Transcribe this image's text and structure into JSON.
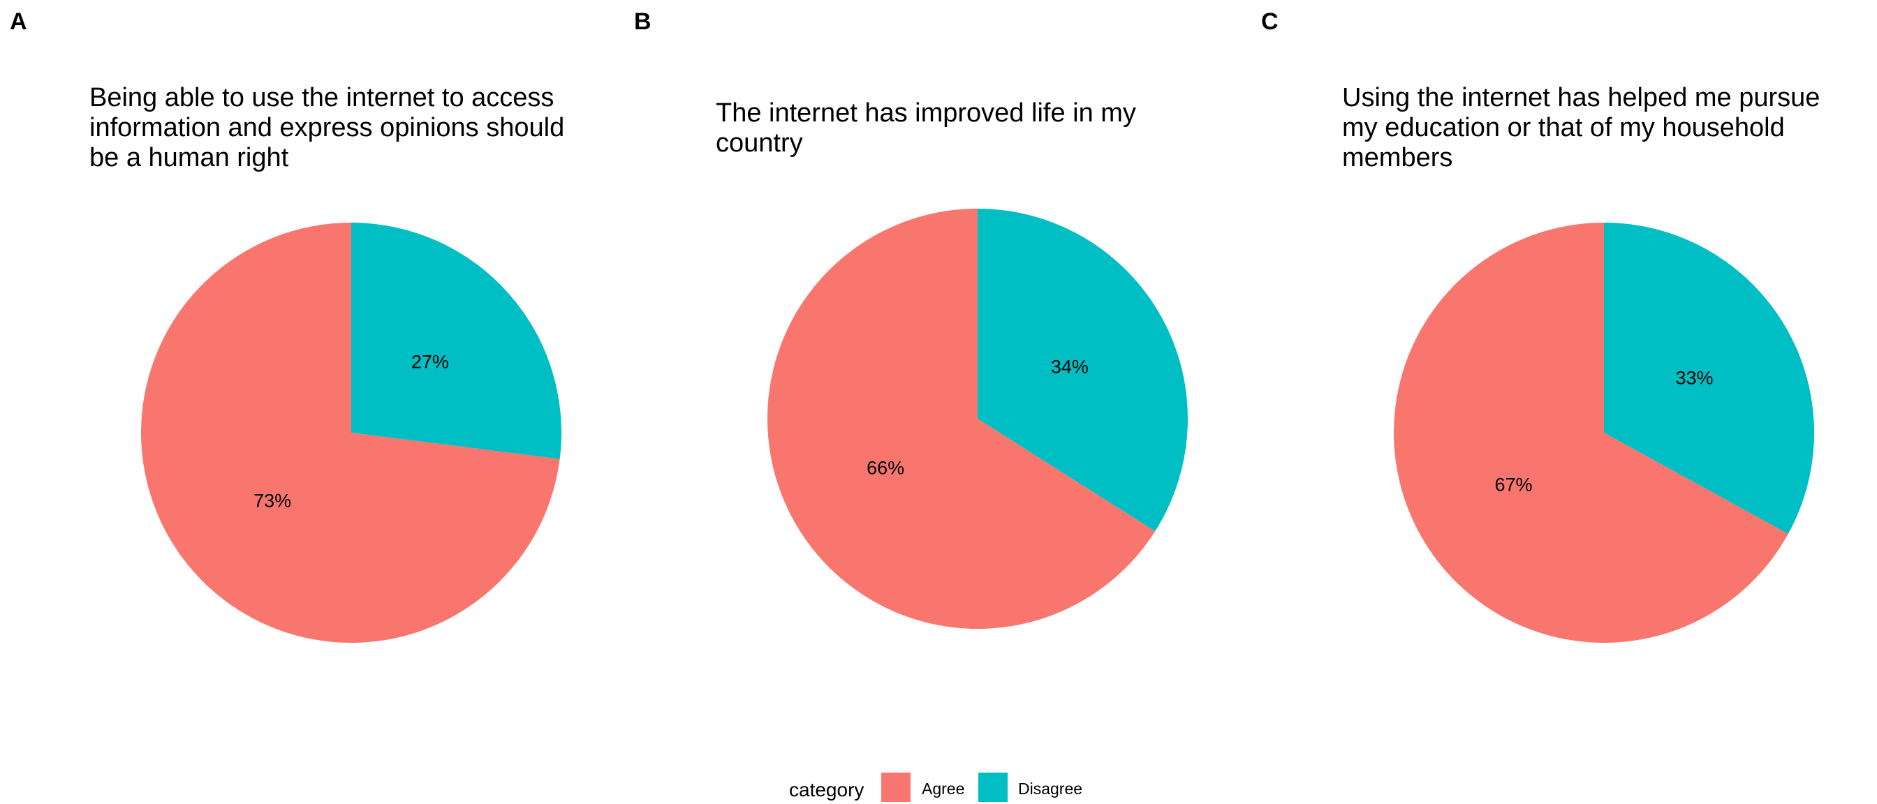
{
  "chart_data": [
    {
      "type": "pie",
      "panel": "A",
      "title": "Being able to use the internet to access information and express opinions should be a human right",
      "title_lines": [
        "Being able to use the internet to access",
        "information and express opinions should",
        "be a human right"
      ],
      "slices": [
        {
          "category": "Disagree",
          "value": 27,
          "label": "27%"
        },
        {
          "category": "Agree",
          "value": 73,
          "label": "73%"
        }
      ]
    },
    {
      "type": "pie",
      "panel": "B",
      "title": "The internet has improved life in my country",
      "title_lines": [
        "The internet has improved life in my",
        "country"
      ],
      "slices": [
        {
          "category": "Disagree",
          "value": 34,
          "label": "34%"
        },
        {
          "category": "Agree",
          "value": 66,
          "label": "66%"
        }
      ]
    },
    {
      "type": "pie",
      "panel": "C",
      "title": "Using the internet has helped me pursue my education or that of my household members",
      "title_lines": [
        "Using the internet has helped me pursue",
        "my education or that of my household",
        "members"
      ],
      "slices": [
        {
          "category": "Disagree",
          "value": 33,
          "label": "33%"
        },
        {
          "category": "Agree",
          "value": 67,
          "label": "67%"
        }
      ]
    }
  ],
  "legend": {
    "title": "category",
    "position": "bottom",
    "items": [
      {
        "label": "Agree",
        "color": "#F8766D"
      },
      {
        "label": "Disagree",
        "color": "#00BFC4"
      }
    ]
  },
  "colors": {
    "Agree": "#F8766D",
    "Disagree": "#00BFC4"
  }
}
